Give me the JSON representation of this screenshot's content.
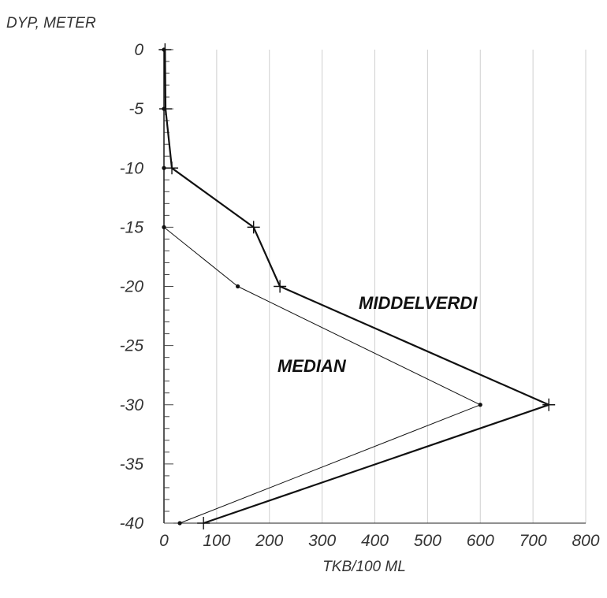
{
  "chart_data": {
    "type": "line",
    "ylabel": "DYP, METER",
    "xlabel": "TKB/100 ML",
    "xlim": [
      0,
      800
    ],
    "ylim": [
      -40,
      0
    ],
    "x_ticks": [
      "0",
      "100",
      "200",
      "300",
      "400",
      "500",
      "600",
      "700",
      "800"
    ],
    "y_ticks": [
      "0",
      "-5",
      "-10",
      "-15",
      "-20",
      "-25",
      "-30",
      "-35",
      "-40"
    ],
    "grid": "vertical",
    "series": [
      {
        "name": "MIDDELVERDI",
        "color": "#111111",
        "marker": "plus",
        "points": [
          {
            "x": 2,
            "y": 0
          },
          {
            "x": 3,
            "y": -5
          },
          {
            "x": 15,
            "y": -10
          },
          {
            "x": 170,
            "y": -15
          },
          {
            "x": 220,
            "y": -20
          },
          {
            "x": 730,
            "y": -30
          },
          {
            "x": 75,
            "y": -40
          }
        ]
      },
      {
        "name": "MEDIAN",
        "color": "#111111",
        "marker": "dot",
        "points": [
          {
            "x": 0,
            "y": 0
          },
          {
            "x": 0,
            "y": -5
          },
          {
            "x": 0,
            "y": -10
          },
          {
            "x": 0,
            "y": -15
          },
          {
            "x": 140,
            "y": -20
          },
          {
            "x": 600,
            "y": -30
          },
          {
            "x": 30,
            "y": -40
          }
        ]
      }
    ]
  }
}
